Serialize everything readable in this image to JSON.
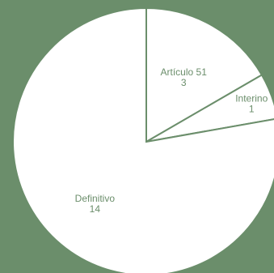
{
  "colors": {
    "background": "#6b8e6b",
    "slice_fill": "#ffffff",
    "slice_stroke": "#6b8e6b",
    "label_text": "#6b8e6b"
  },
  "chart_data": {
    "type": "pie",
    "title": "",
    "start_angle_deg": 0,
    "direction": "clockwise",
    "legend": "none",
    "slices": [
      {
        "label": "Artículo 51",
        "value": 3
      },
      {
        "label": "Interino",
        "value": 1
      },
      {
        "label": "Definitivo",
        "value": 14
      }
    ]
  }
}
